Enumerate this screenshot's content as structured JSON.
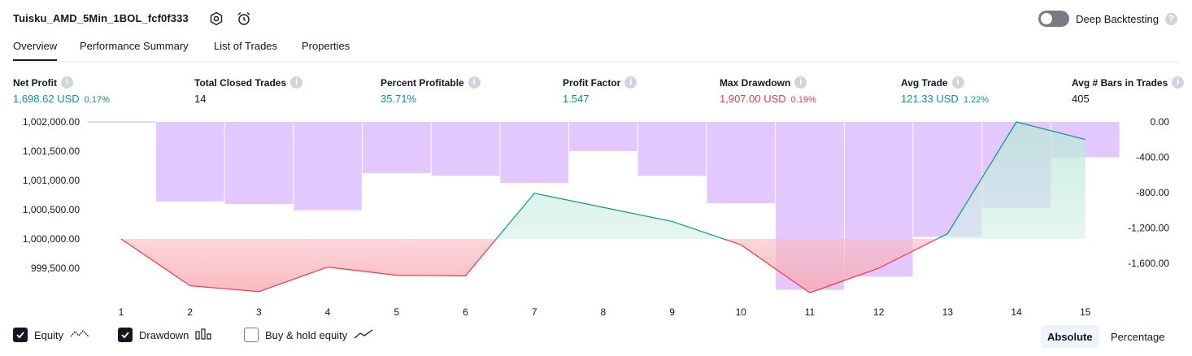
{
  "header": {
    "title": "Tuisku_AMD_5Min_1BOL_fcf0f333",
    "deep_backtesting_label": "Deep Backtesting",
    "deep_backtesting_on": false
  },
  "tabs": [
    {
      "label": "Overview",
      "active": true
    },
    {
      "label": "Performance Summary",
      "active": false
    },
    {
      "label": "List of Trades",
      "active": false
    },
    {
      "label": "Properties",
      "active": false
    }
  ],
  "metrics": [
    {
      "label": "Net Profit",
      "value": "1,698.62 USD",
      "percent": "0.17%",
      "tone": "positive"
    },
    {
      "label": "Total Closed Trades",
      "value": "14",
      "percent": "",
      "tone": "neutral"
    },
    {
      "label": "Percent Profitable",
      "value": "35.71%",
      "percent": "",
      "tone": "positive"
    },
    {
      "label": "Profit Factor",
      "value": "1.547",
      "percent": "",
      "tone": "positive"
    },
    {
      "label": "Max Drawdown",
      "value": "1,907.00 USD",
      "percent": "0.19%",
      "tone": "negative"
    },
    {
      "label": "Avg Trade",
      "value": "121.33 USD",
      "percent": "1.22%",
      "tone": "positive"
    },
    {
      "label": "Avg # Bars in Trades",
      "value": "405",
      "percent": "",
      "tone": "neutral"
    }
  ],
  "chart_data": {
    "type": "line",
    "x": [
      1,
      2,
      3,
      4,
      5,
      6,
      7,
      8,
      9,
      10,
      11,
      12,
      13,
      14,
      15
    ],
    "baseline_equity": 1000000,
    "series": [
      {
        "axis": "left",
        "style": "line-area",
        "values": [
          1000000,
          999200,
          999100,
          999520,
          999380,
          999370,
          1000780,
          1000540,
          1000300,
          999900,
          999080,
          999500,
          1000090,
          1002000,
          1001700
        ]
      },
      {
        "axis": "right",
        "style": "bars",
        "values": [
          0,
          -900,
          -930,
          -1000,
          -580,
          -610,
          -690,
          -330,
          -610,
          -920,
          -1900,
          -1750,
          -1300,
          -970,
          -400
        ]
      }
    ],
    "y_left_ticks": [
      "1,002,000.00",
      "1,001,500.00",
      "1,001,000.00",
      "1,000,500.00",
      "1,000,000.00",
      "999,500.00"
    ],
    "y_right_ticks": [
      "0.00",
      "-400.00",
      "-800.00",
      "-1,200.00",
      "-1,600.00"
    ],
    "y_left_range": [
      999300,
      1002000
    ],
    "y_right_range": [
      -1950,
      0
    ],
    "grid": false,
    "colors": {
      "equity_up": "#089981",
      "equity_down": "#f23645",
      "area_up": "#cdeee4",
      "area_down": "#fbd3d7",
      "drawdown_bar": "#e1c4ff"
    }
  },
  "footer": {
    "legend": [
      {
        "label": "Equity",
        "checked": true,
        "icon": "equity-line-icon"
      },
      {
        "label": "Drawdown",
        "checked": true,
        "icon": "drawdown-bars-icon"
      },
      {
        "label": "Buy & hold equity",
        "checked": false,
        "icon": "buy-hold-line-icon"
      }
    ],
    "modes": [
      {
        "label": "Absolute",
        "active": true
      },
      {
        "label": "Percentage",
        "active": false
      }
    ]
  }
}
